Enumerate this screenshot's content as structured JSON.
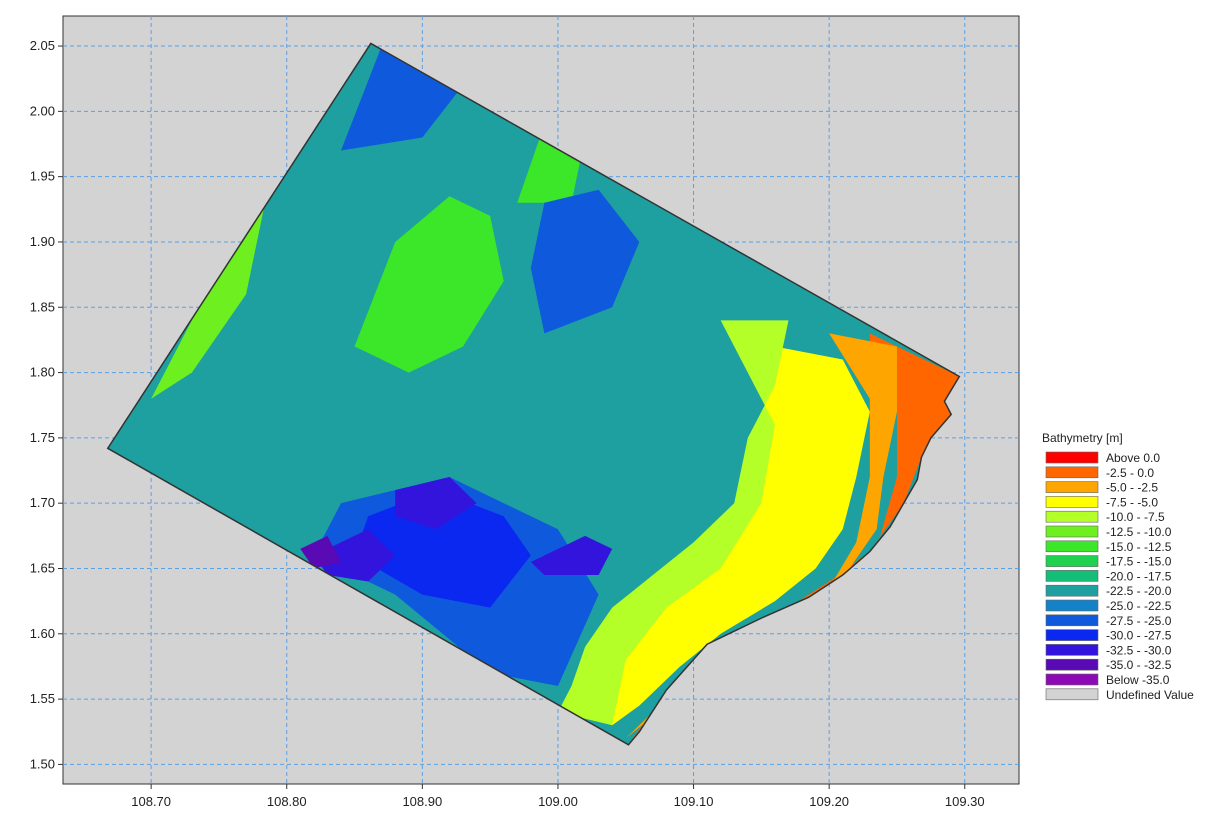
{
  "chart_data": {
    "type": "heatmap",
    "title": "",
    "xlabel": "",
    "ylabel": "",
    "xlim": [
      108.635,
      109.34
    ],
    "ylim": [
      1.485,
      2.073
    ],
    "xticks": [
      "108.70",
      "108.80",
      "108.90",
      "109.00",
      "109.10",
      "109.20",
      "109.30"
    ],
    "yticks": [
      "1.50",
      "1.55",
      "1.60",
      "1.65",
      "1.70",
      "1.75",
      "1.80",
      "1.85",
      "1.90",
      "1.95",
      "2.00",
      "2.05"
    ],
    "grid": true,
    "legend_position": "right",
    "legend_title": "Bathymetry [m]",
    "legend": [
      {
        "label": "Above   0.0",
        "color": "#ff0000"
      },
      {
        "label": "-2.5 -   0.0",
        "color": "#ff6600"
      },
      {
        "label": "-5.0 -  -2.5",
        "color": "#ffa500"
      },
      {
        "label": "-7.5 -  -5.0",
        "color": "#ffff00"
      },
      {
        "label": "-10.0 -  -7.5",
        "color": "#b4ff28"
      },
      {
        "label": "-12.5 - -10.0",
        "color": "#6ef020"
      },
      {
        "label": "-15.0 - -12.5",
        "color": "#3ce628"
      },
      {
        "label": "-17.5 - -15.0",
        "color": "#1ed250"
      },
      {
        "label": "-20.0 - -17.5",
        "color": "#14be78"
      },
      {
        "label": "-22.5 - -20.0",
        "color": "#1ea0a0"
      },
      {
        "label": "-25.0 - -22.5",
        "color": "#1482c8"
      },
      {
        "label": "-27.5 - -25.0",
        "color": "#0f5adc"
      },
      {
        "label": "-30.0 - -27.5",
        "color": "#0a28f0"
      },
      {
        "label": "-32.5 - -30.0",
        "color": "#3214dc"
      },
      {
        "label": "-35.0 - -32.5",
        "color": "#5a0ab4"
      },
      {
        "label": "Below -35.0",
        "color": "#8c0ab4"
      },
      {
        "label": "Undefined Value",
        "color": "#d3d3d3"
      }
    ],
    "domain_outline": [
      [
        108.862,
        2.052
      ],
      [
        109.296,
        1.797
      ],
      [
        109.285,
        1.778
      ],
      [
        109.29,
        1.768
      ],
      [
        109.275,
        1.75
      ],
      [
        109.268,
        1.735
      ],
      [
        109.265,
        1.718
      ],
      [
        109.255,
        1.7
      ],
      [
        109.245,
        1.682
      ],
      [
        109.23,
        1.663
      ],
      [
        109.21,
        1.645
      ],
      [
        109.185,
        1.628
      ],
      [
        109.15,
        1.612
      ],
      [
        109.11,
        1.592
      ],
      [
        109.08,
        1.557
      ],
      [
        109.06,
        1.525
      ],
      [
        109.052,
        1.515
      ],
      [
        108.668,
        1.742
      ]
    ],
    "depth_regions": [
      {
        "range": "-2.5 -   0.0",
        "polygon": [
          [
            109.23,
            1.83
          ],
          [
            109.296,
            1.797
          ],
          [
            109.29,
            1.768
          ],
          [
            109.268,
            1.735
          ],
          [
            109.255,
            1.7
          ],
          [
            109.23,
            1.663
          ],
          [
            109.2,
            1.64
          ],
          [
            109.17,
            1.62
          ],
          [
            109.12,
            1.59
          ],
          [
            109.08,
            1.555
          ],
          [
            109.055,
            1.52
          ],
          [
            109.06,
            1.515
          ],
          [
            109.12,
            1.57
          ],
          [
            109.17,
            1.595
          ],
          [
            109.21,
            1.63
          ],
          [
            109.235,
            1.665
          ],
          [
            109.25,
            1.72
          ],
          [
            109.25,
            1.77
          ],
          [
            109.23,
            1.8
          ]
        ]
      },
      {
        "range": "-5.0 -  -2.5",
        "polygon": [
          [
            109.2,
            1.83
          ],
          [
            109.25,
            1.82
          ],
          [
            109.25,
            1.77
          ],
          [
            109.24,
            1.72
          ],
          [
            109.235,
            1.68
          ],
          [
            109.215,
            1.65
          ],
          [
            109.18,
            1.62
          ],
          [
            109.14,
            1.6
          ],
          [
            109.1,
            1.57
          ],
          [
            109.07,
            1.54
          ],
          [
            109.05,
            1.52
          ],
          [
            109.08,
            1.545
          ],
          [
            109.12,
            1.575
          ],
          [
            109.16,
            1.6
          ],
          [
            109.2,
            1.635
          ],
          [
            109.22,
            1.67
          ],
          [
            109.23,
            1.72
          ],
          [
            109.23,
            1.78
          ]
        ]
      },
      {
        "range": "-7.5 -  -5.0",
        "polygon": [
          [
            109.16,
            1.82
          ],
          [
            109.21,
            1.81
          ],
          [
            109.23,
            1.77
          ],
          [
            109.22,
            1.72
          ],
          [
            109.21,
            1.68
          ],
          [
            109.19,
            1.65
          ],
          [
            109.16,
            1.625
          ],
          [
            109.12,
            1.6
          ],
          [
            109.09,
            1.575
          ],
          [
            109.06,
            1.545
          ],
          [
            109.04,
            1.53
          ],
          [
            109.03,
            1.58
          ],
          [
            109.05,
            1.62
          ],
          [
            109.08,
            1.64
          ],
          [
            109.12,
            1.67
          ],
          [
            109.14,
            1.72
          ],
          [
            109.15,
            1.76
          ]
        ]
      },
      {
        "range": "-10.0 -  -7.5",
        "polygon": [
          [
            109.12,
            1.84
          ],
          [
            109.17,
            1.84
          ],
          [
            109.16,
            1.79
          ],
          [
            109.14,
            1.75
          ],
          [
            109.13,
            1.7
          ],
          [
            109.1,
            1.67
          ],
          [
            109.07,
            1.645
          ],
          [
            109.04,
            1.62
          ],
          [
            109.02,
            1.59
          ],
          [
            109.01,
            1.56
          ],
          [
            109.0,
            1.54
          ],
          [
            109.04,
            1.53
          ],
          [
            109.05,
            1.58
          ],
          [
            109.08,
            1.62
          ],
          [
            109.12,
            1.65
          ],
          [
            109.15,
            1.7
          ],
          [
            109.16,
            1.76
          ]
        ]
      },
      {
        "range": "-12.5 - -10.0",
        "polygon": [
          [
            108.7,
            1.78
          ],
          [
            108.74,
            1.86
          ],
          [
            108.77,
            1.92
          ],
          [
            108.79,
            1.96
          ],
          [
            108.77,
            1.86
          ],
          [
            108.73,
            1.8
          ]
        ]
      },
      {
        "range": "-15.0 - -12.5",
        "polygon": [
          [
            108.85,
            1.82
          ],
          [
            108.88,
            1.9
          ],
          [
            108.92,
            1.935
          ],
          [
            108.95,
            1.92
          ],
          [
            108.96,
            1.87
          ],
          [
            108.93,
            1.82
          ],
          [
            108.89,
            1.8
          ]
        ]
      },
      {
        "range": "-15.0 - -12.5",
        "polygon": [
          [
            108.97,
            1.93
          ],
          [
            108.99,
            1.99
          ],
          [
            109.02,
            1.98
          ],
          [
            109.01,
            1.93
          ]
        ]
      },
      {
        "range": "-27.5 - -25.0",
        "polygon": [
          [
            108.84,
            1.7
          ],
          [
            108.92,
            1.72
          ],
          [
            109.0,
            1.68
          ],
          [
            109.03,
            1.63
          ],
          [
            109.0,
            1.56
          ],
          [
            108.95,
            1.57
          ],
          [
            108.88,
            1.63
          ],
          [
            108.82,
            1.66
          ]
        ]
      },
      {
        "range": "-27.5 - -25.0",
        "polygon": [
          [
            108.99,
            1.83
          ],
          [
            109.04,
            1.85
          ],
          [
            109.06,
            1.9
          ],
          [
            109.03,
            1.94
          ],
          [
            108.99,
            1.93
          ],
          [
            108.98,
            1.88
          ]
        ]
      },
      {
        "range": "-27.5 - -25.0",
        "polygon": [
          [
            108.84,
            1.97
          ],
          [
            108.87,
            2.05
          ],
          [
            108.93,
            2.02
          ],
          [
            108.9,
            1.98
          ]
        ]
      },
      {
        "range": "-30.0 - -27.5",
        "polygon": [
          [
            108.86,
            1.69
          ],
          [
            108.91,
            1.71
          ],
          [
            108.96,
            1.69
          ],
          [
            108.98,
            1.66
          ],
          [
            108.95,
            1.62
          ],
          [
            108.9,
            1.63
          ],
          [
            108.85,
            1.66
          ]
        ]
      },
      {
        "range": "-32.5 - -30.0",
        "polygon": [
          [
            108.82,
            1.66
          ],
          [
            108.86,
            1.68
          ],
          [
            108.88,
            1.66
          ],
          [
            108.86,
            1.64
          ],
          [
            108.83,
            1.645
          ]
        ]
      },
      {
        "range": "-32.5 - -30.0",
        "polygon": [
          [
            108.88,
            1.71
          ],
          [
            108.92,
            1.72
          ],
          [
            108.94,
            1.7
          ],
          [
            108.91,
            1.68
          ],
          [
            108.88,
            1.69
          ]
        ]
      },
      {
        "range": "-32.5 - -30.0",
        "polygon": [
          [
            108.98,
            1.655
          ],
          [
            109.02,
            1.675
          ],
          [
            109.04,
            1.665
          ],
          [
            109.03,
            1.645
          ],
          [
            108.99,
            1.645
          ]
        ]
      },
      {
        "range": "-35.0 - -32.5",
        "polygon": [
          [
            108.81,
            1.665
          ],
          [
            108.83,
            1.675
          ],
          [
            108.84,
            1.655
          ],
          [
            108.82,
            1.65
          ]
        ]
      }
    ]
  }
}
